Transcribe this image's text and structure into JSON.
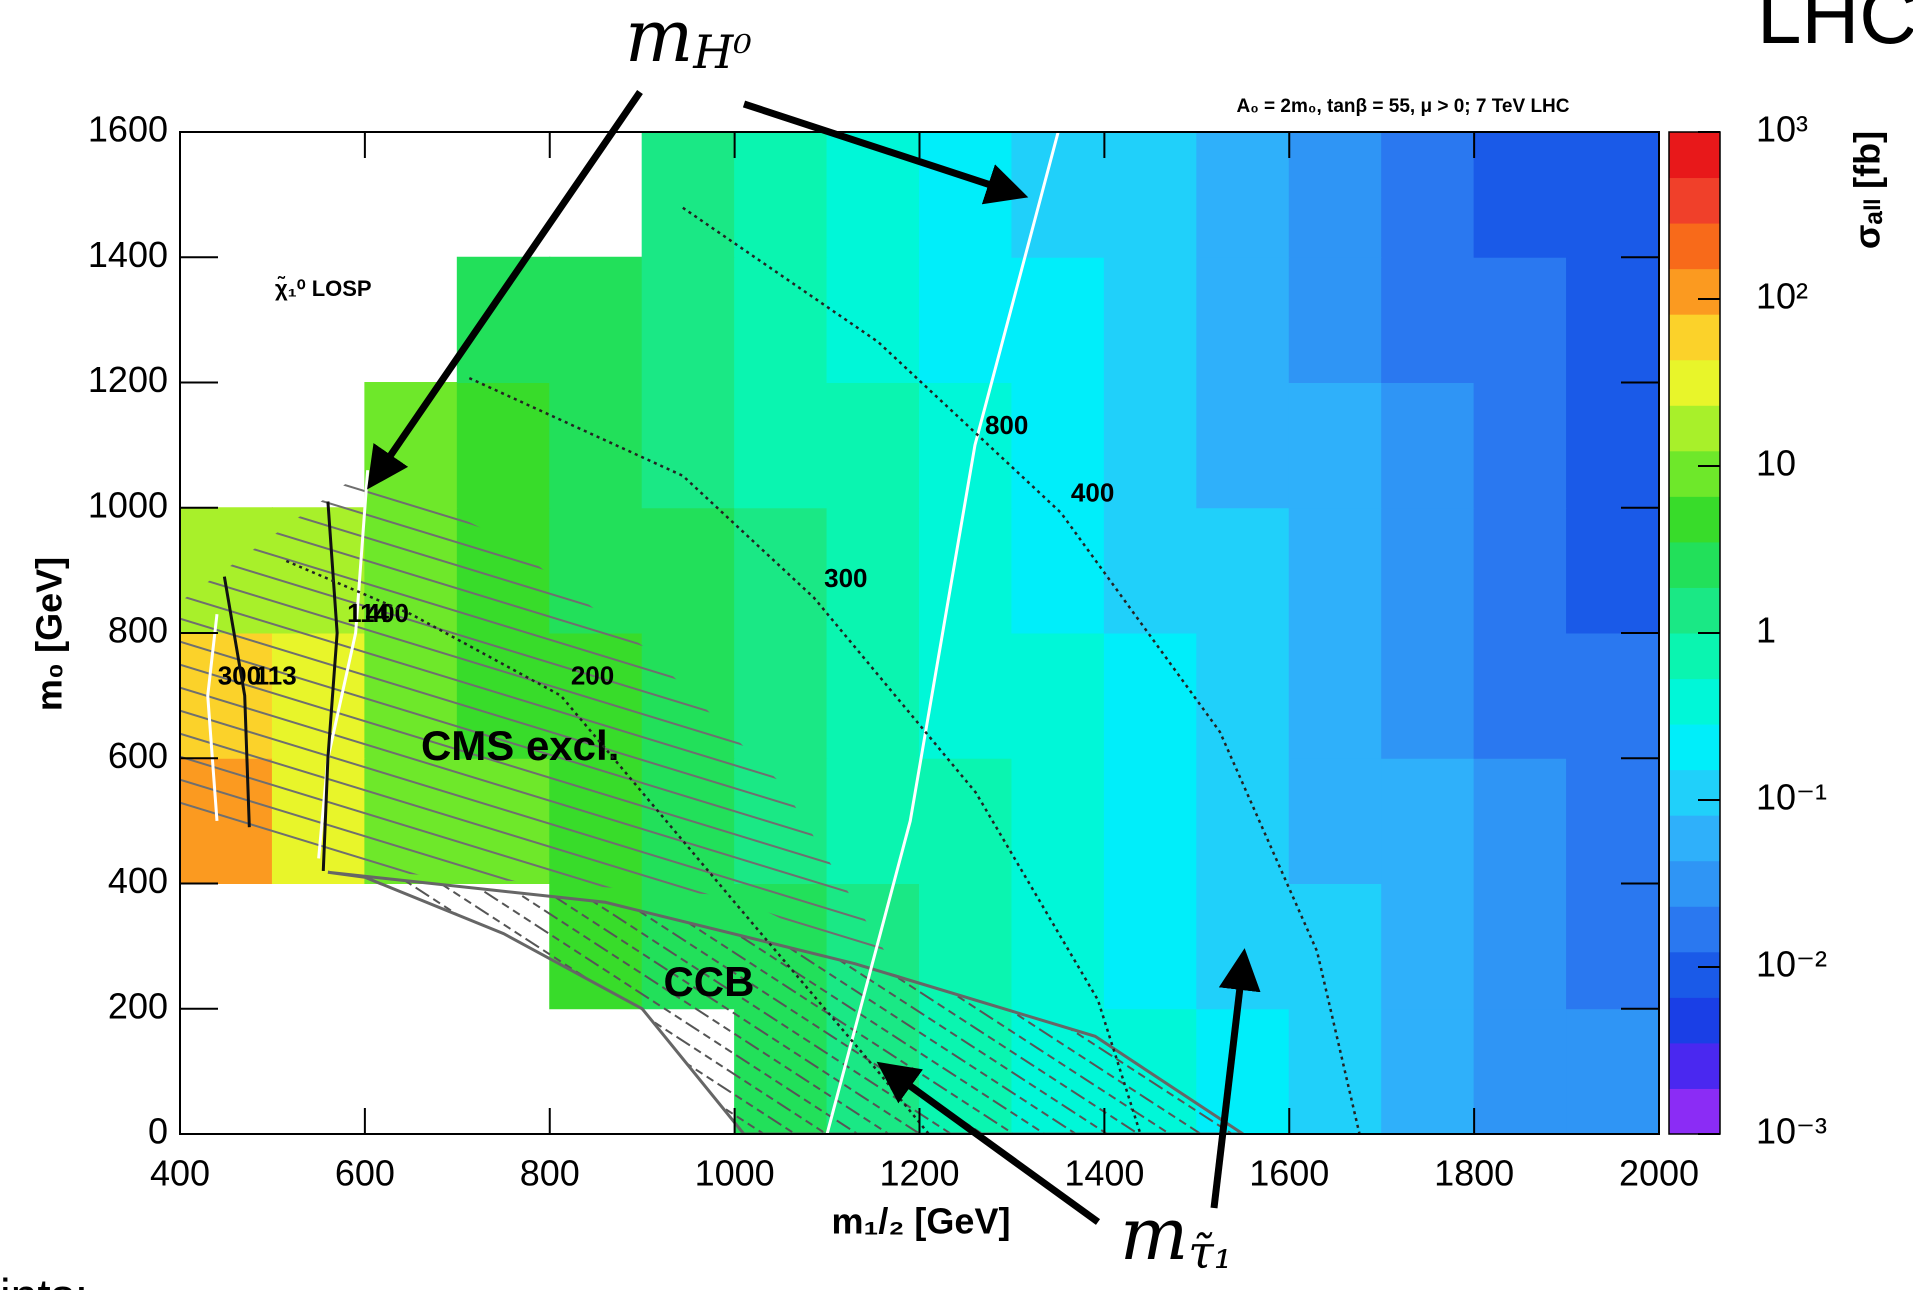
{
  "chart_data": {
    "type": "heatmap",
    "annotation": "A₀ = 2m₀, tanβ = 55, μ > 0;   7 TeV LHC",
    "x_label": "m₁/₂ [GeV]",
    "y_label": "m₀ [GeV]",
    "colorbar_label": "σₐₗₗ [fb]",
    "losp_label": "χ̃₁⁰ LOSP",
    "xlim": [
      400,
      2000
    ],
    "ylim": [
      0,
      1600
    ],
    "xticks": [
      400,
      600,
      800,
      1000,
      1200,
      1400,
      1600,
      1800,
      2000
    ],
    "yticks": [
      0,
      200,
      400,
      600,
      800,
      1000,
      1200,
      1400,
      1600
    ],
    "x": [
      450,
      550,
      650,
      750,
      850,
      950,
      1050,
      1150,
      1250,
      1350,
      1450,
      1550,
      1650,
      1750,
      1850,
      1950
    ],
    "y": [
      100,
      300,
      500,
      700,
      900,
      1100,
      1300,
      1500
    ],
    "values": [
      [
        null,
        null,
        null,
        null,
        null,
        null,
        2.3,
        1.4,
        0.85,
        0.51,
        0.31,
        0.19,
        0.11,
        0.068,
        0.041,
        0.025
      ],
      [
        null,
        null,
        null,
        null,
        5.4,
        3.2,
        1.9,
        1.2,
        0.71,
        0.43,
        0.26,
        0.15,
        0.093,
        0.056,
        0.034,
        0.02
      ],
      [
        120,
        30,
        12,
        7.4,
        4.5,
        2.7,
        1.6,
        0.98,
        0.59,
        0.35,
        0.21,
        0.13,
        0.078,
        0.047,
        0.028,
        0.017
      ],
      [
        45,
        25,
        10,
        6.2,
        3.7,
        2.2,
        1.3,
        0.81,
        0.49,
        0.3,
        0.18,
        0.11,
        0.065,
        0.039,
        0.023,
        0.014
      ],
      [
        23,
        14,
        8.5,
        5.1,
        3.1,
        1.9,
        1.1,
        0.68,
        0.41,
        0.25,
        0.15,
        0.089,
        0.054,
        0.032,
        0.019,
        0.012
      ],
      [
        null,
        null,
        7.1,
        4.3,
        2.6,
        1.5,
        0.93,
        0.56,
        0.34,
        0.2,
        0.12,
        0.074,
        0.045,
        0.027,
        0.016,
        0.0098
      ],
      [
        null,
        null,
        null,
        3.5,
        2.1,
        1.3,
        0.78,
        0.47,
        0.28,
        0.17,
        0.1,
        0.062,
        0.037,
        0.022,
        0.013,
        0.0081
      ],
      [
        null,
        null,
        null,
        null,
        null,
        1.1,
        0.65,
        0.39,
        0.23,
        0.14,
        0.085,
        0.051,
        0.031,
        0.019,
        0.011,
        0.0068
      ]
    ],
    "zscale": "log",
    "zlim": [
      0.001,
      1000
    ],
    "zticks": [
      {
        "value": 0.001,
        "label": "10⁻³"
      },
      {
        "value": 0.01,
        "label": "10⁻²"
      },
      {
        "value": 0.1,
        "label": "10⁻¹"
      },
      1,
      10,
      {
        "value": 100,
        "label": "10²"
      },
      {
        "value": 1000,
        "label": "10³"
      }
    ],
    "colors": [
      "#8b2cf5",
      "#4a28f0",
      "#1a3fe6",
      "#1a5ae8",
      "#2a78f0",
      "#2f95f5",
      "#2fb0fa",
      "#20d0fa",
      "#00eefa",
      "#00f7d8",
      "#0af5b0",
      "#1ae885",
      "#22e05a",
      "#38dc2a",
      "#6ee82a",
      "#a8f02a",
      "#e8f52a",
      "#fbd22a",
      "#fb9a20",
      "#f86a1a",
      "#f0402a",
      "#e8181a"
    ],
    "contours": [
      {
        "level": 300,
        "color": "#ffffff",
        "dashed": false,
        "points": [
          [
            440,
            830
          ],
          [
            430,
            700
          ],
          [
            440,
            500
          ]
        ]
      },
      {
        "level": 400,
        "color": "#ffffff",
        "dashed": false,
        "points": [
          [
            603,
            1060
          ],
          [
            590,
            800
          ],
          [
            560,
            600
          ],
          [
            550,
            440
          ]
        ]
      },
      {
        "level": 800,
        "color": "#ffffff",
        "dashed": false,
        "points": [
          [
            1350,
            1600
          ],
          [
            1260,
            1100
          ],
          [
            1190,
            500
          ],
          [
            1100,
            0
          ]
        ]
      },
      {
        "level": 113,
        "color": "#111111",
        "dashed": false,
        "points": [
          [
            448,
            890
          ],
          [
            470,
            700
          ],
          [
            475,
            490
          ]
        ]
      },
      {
        "level": 114,
        "color": "#111111",
        "dashed": false,
        "points": [
          [
            560,
            1010
          ],
          [
            570,
            800
          ],
          [
            560,
            600
          ],
          [
            555,
            420
          ]
        ]
      },
      {
        "level": 200,
        "color": "#222222",
        "dashed": true,
        "points": [
          [
            515,
            915
          ],
          [
            650,
            830
          ],
          [
            812,
            700
          ],
          [
            1000,
            370
          ],
          [
            1155,
            100
          ],
          [
            1210,
            0
          ]
        ]
      },
      {
        "level": 300,
        "color": "#222222",
        "dashed": true,
        "points": [
          [
            713,
            1207
          ],
          [
            944,
            1051
          ],
          [
            1086,
            856
          ],
          [
            1261,
            545
          ],
          [
            1393,
            214
          ],
          [
            1439,
            0
          ]
        ]
      },
      {
        "level": 400,
        "color": "#222222",
        "dashed": true,
        "points": [
          [
            944,
            1479
          ],
          [
            1155,
            1265
          ],
          [
            1353,
            992
          ],
          [
            1525,
            642
          ],
          [
            1630,
            292
          ],
          [
            1676,
            0
          ]
        ]
      }
    ],
    "regions": [
      {
        "label": "CMS excl.",
        "boundary": [
          [
            400,
            850
          ],
          [
            600,
            1060
          ],
          [
            750,
            950
          ],
          [
            900,
            780
          ],
          [
            1050,
            560
          ],
          [
            1180,
            250
          ],
          [
            1000,
            380
          ],
          [
            800,
            400
          ],
          [
            600,
            420
          ],
          [
            400,
            500
          ]
        ]
      },
      {
        "label": "CCB",
        "boundary": [
          [
            560,
            418
          ],
          [
            860,
            370
          ],
          [
            1130,
            272
          ],
          [
            1390,
            156
          ],
          [
            1550,
            0
          ],
          [
            1010,
            0
          ],
          [
            900,
            200
          ],
          [
            750,
            320
          ],
          [
            600,
            410
          ]
        ]
      }
    ]
  },
  "callouts": [
    {
      "text": "m",
      "sub": "H⁰"
    },
    {
      "text": "m",
      "sub": "τ̃₁"
    }
  ],
  "page_texts": {
    "top_right": "LHC",
    "bottom_left": "ints:"
  }
}
